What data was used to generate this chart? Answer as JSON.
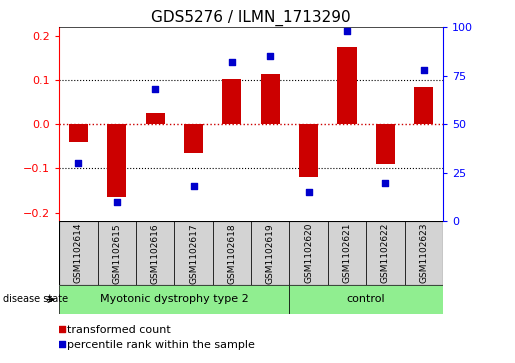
{
  "title": "GDS5276 / ILMN_1713290",
  "samples": [
    "GSM1102614",
    "GSM1102615",
    "GSM1102616",
    "GSM1102617",
    "GSM1102618",
    "GSM1102619",
    "GSM1102620",
    "GSM1102621",
    "GSM1102622",
    "GSM1102623"
  ],
  "transformed_count": [
    -0.04,
    -0.165,
    0.025,
    -0.065,
    0.102,
    0.113,
    -0.12,
    0.175,
    -0.09,
    0.085
  ],
  "percentile_rank": [
    30,
    10,
    68,
    18,
    82,
    85,
    15,
    98,
    20,
    78
  ],
  "disease_groups": [
    {
      "label": "Myotonic dystrophy type 2",
      "start": 0,
      "end": 6
    },
    {
      "label": "control",
      "start": 6,
      "end": 10
    }
  ],
  "ylim_left": [
    -0.22,
    0.22
  ],
  "ylim_right": [
    0,
    100
  ],
  "yticks_left": [
    -0.2,
    -0.1,
    0.0,
    0.1,
    0.2
  ],
  "yticks_right": [
    0,
    25,
    50,
    75,
    100
  ],
  "bar_color": "#CC0000",
  "dot_color": "#0000CC",
  "hline_zero_color": "#CC0000",
  "hline_grid_color": "#000000",
  "sample_box_color": "#D3D3D3",
  "disease_box_color": "#90EE90",
  "legend_transformed": "transformed count",
  "legend_percentile": "percentile rank within the sample",
  "disease_state_label": "disease state",
  "title_fontsize": 11,
  "tick_fontsize": 8,
  "label_fontsize": 7,
  "sample_fontsize": 6.5,
  "disease_fontsize": 8,
  "legend_fontsize": 8
}
